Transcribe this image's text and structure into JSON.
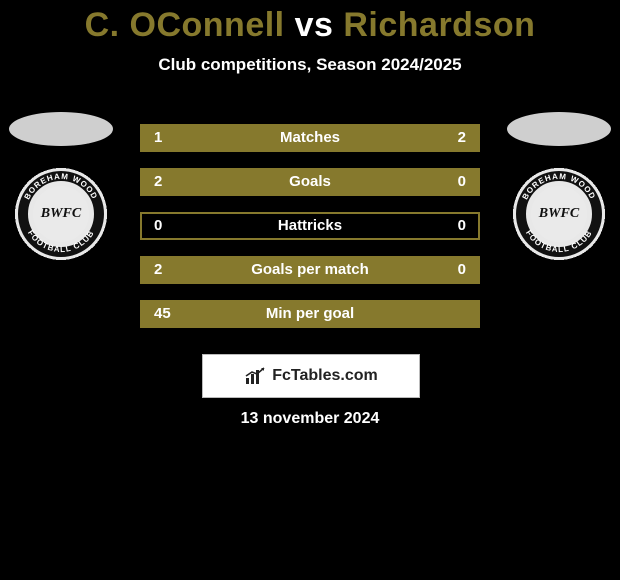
{
  "title": {
    "player_a": "C. OConnell",
    "vs": " vs ",
    "player_b": "Richardson",
    "color_players": "#86792d",
    "color_vs": "#ffffff"
  },
  "subtitle": "Club competitions, Season 2024/2025",
  "stats": {
    "row_border_color": "#86792d",
    "fill_color": "#86792d",
    "text_color": "#ffffff",
    "rows": [
      {
        "label": "Matches",
        "left": "1",
        "right": "2",
        "left_pct": 33,
        "right_pct": 67
      },
      {
        "label": "Goals",
        "left": "2",
        "right": "0",
        "left_pct": 100,
        "right_pct": 0
      },
      {
        "label": "Hattricks",
        "left": "0",
        "right": "0",
        "left_pct": 0,
        "right_pct": 0
      },
      {
        "label": "Goals per match",
        "left": "2",
        "right": "0",
        "left_pct": 100,
        "right_pct": 0
      },
      {
        "label": "Min per goal",
        "left": "45",
        "right": "",
        "left_pct": 100,
        "right_pct": 0
      }
    ]
  },
  "crest": {
    "ring_text_top": "BOREHAM WOOD",
    "ring_text_bottom": "FOOTBALL CLUB",
    "monogram": "BWFC"
  },
  "brand": "FcTables.com",
  "date": "13 november 2024"
}
